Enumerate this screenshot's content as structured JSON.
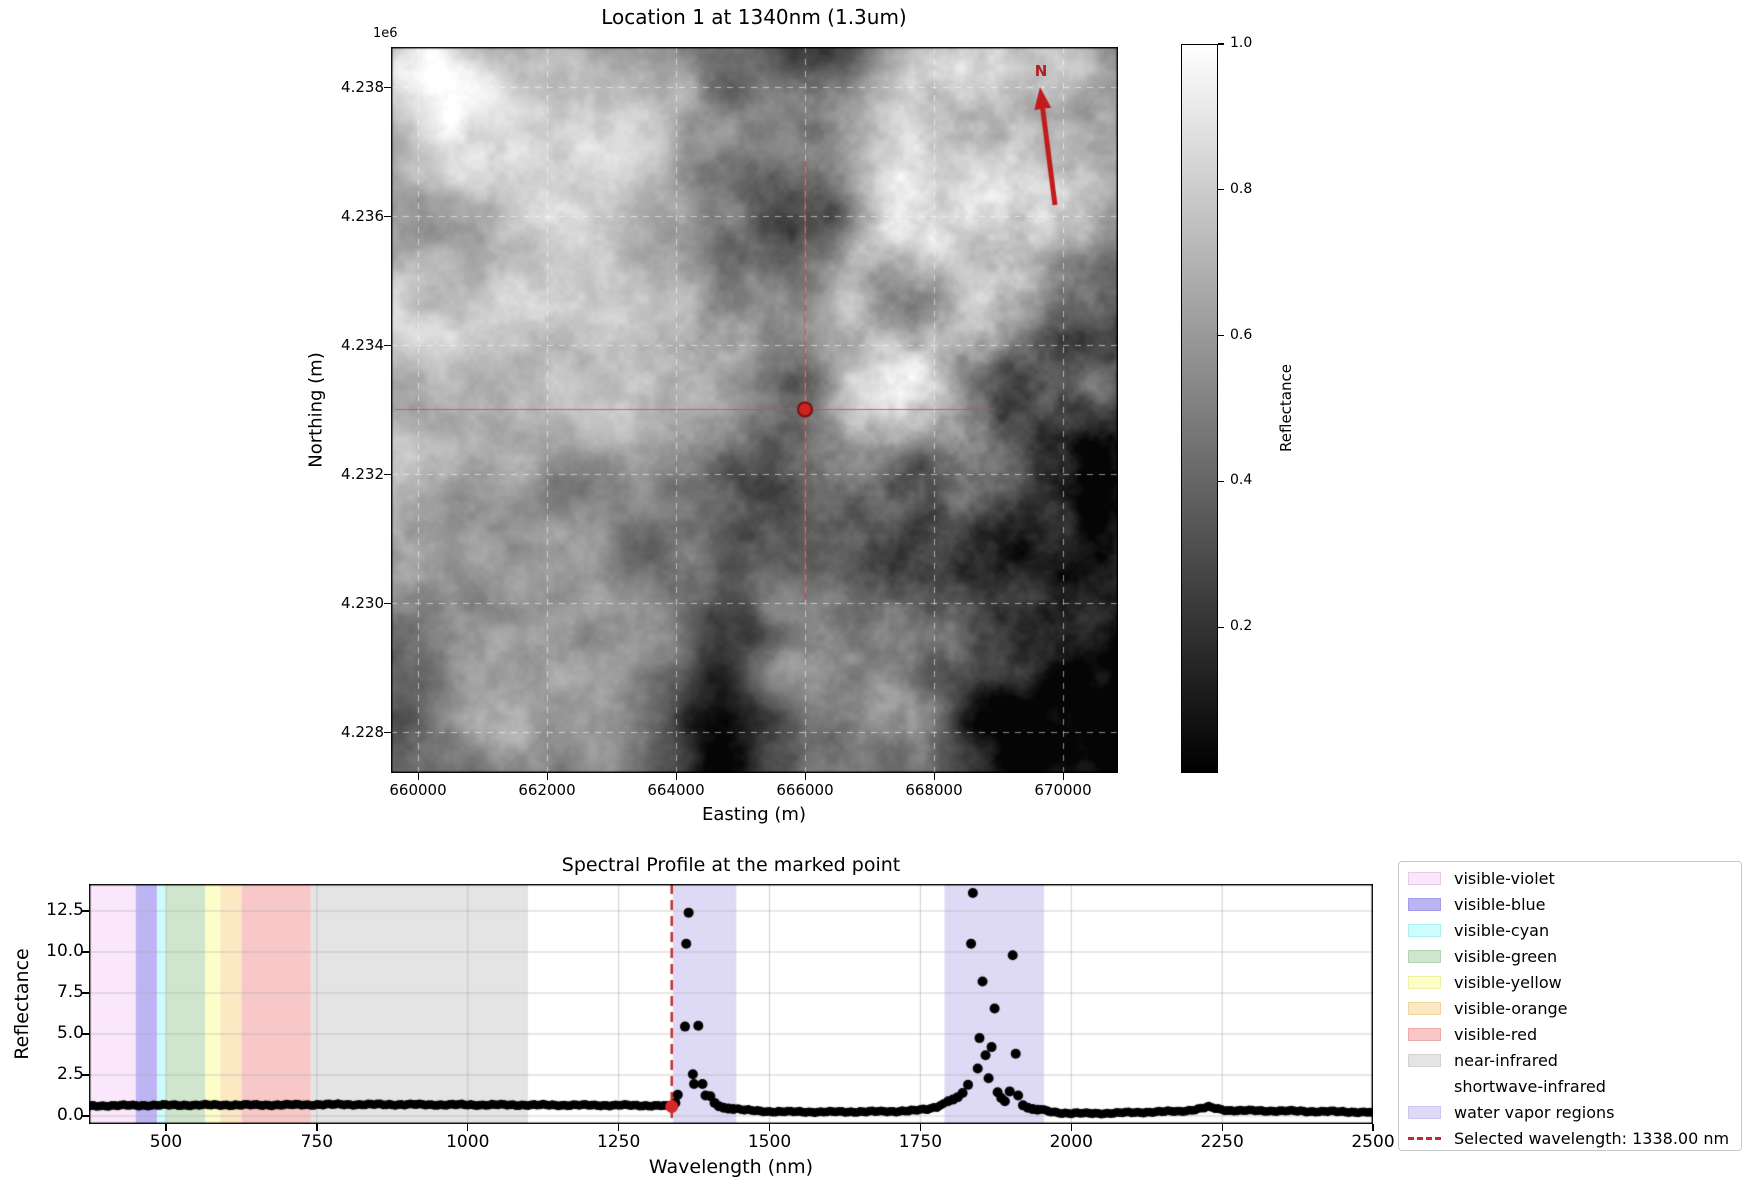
{
  "map": {
    "title": "Location 1 at 1340nm (1.3um)",
    "axis_offset_label": "1e6",
    "xlabel": "Easting (m)",
    "ylabel": "Northing (m)",
    "x_tick_labels": [
      "660000",
      "662000",
      "664000",
      "666000",
      "668000",
      "670000"
    ],
    "y_tick_labels": [
      "4.238",
      "4.236",
      "4.234",
      "4.232",
      "4.230",
      "4.228"
    ],
    "north_arrow_label": "N",
    "marked_point": {
      "easting_m": 666000,
      "northing_m": 4233000
    },
    "colors": {
      "marker_fill": "#cf2222",
      "marker_edge": "#7a0e0e",
      "crosshair": "#c85050",
      "north_arrow": "#c11c1c",
      "grid": "rgba(255,255,255,0.55)"
    }
  },
  "colorbar": {
    "label": "Reflectance",
    "tick_labels": [
      "1.0",
      "0.8",
      "0.6",
      "0.4",
      "0.2"
    ],
    "tick_values": [
      1.0,
      0.8,
      0.6,
      0.4,
      0.2
    ],
    "range": [
      0.0,
      1.0
    ],
    "colormap": "gray"
  },
  "spectral": {
    "title": "Spectral Profile at the marked point",
    "xlabel": "Wavelength (nm)",
    "ylabel": "Reflectance",
    "x_tick_labels": [
      "500",
      "750",
      "1000",
      "1250",
      "1500",
      "1750",
      "2000",
      "2250",
      "2500"
    ],
    "x_tick_values": [
      500,
      750,
      1000,
      1250,
      1500,
      1750,
      2000,
      2250,
      2500
    ],
    "y_tick_labels": [
      "0.0",
      "2.5",
      "5.0",
      "7.5",
      "10.0",
      "12.5"
    ],
    "y_tick_values": [
      0.0,
      2.5,
      5.0,
      7.5,
      10.0,
      12.5
    ],
    "legend": [
      {
        "label": "visible-violet",
        "swatch": "patch",
        "color": "#fbe7fb",
        "edge": "#ecc9ec"
      },
      {
        "label": "visible-blue",
        "swatch": "patch",
        "color": "#bdb5f3",
        "edge": "#a79bee"
      },
      {
        "label": "visible-cyan",
        "swatch": "patch",
        "color": "#cdfcfc",
        "edge": "#aef0f0"
      },
      {
        "label": "visible-green",
        "swatch": "patch",
        "color": "#cfe5cd",
        "edge": "#b4d3b1"
      },
      {
        "label": "visible-yellow",
        "swatch": "patch",
        "color": "#fdfdca",
        "edge": "#efefa6"
      },
      {
        "label": "visible-orange",
        "swatch": "patch",
        "color": "#fde8c4",
        "edge": "#f4d49e"
      },
      {
        "label": "visible-red",
        "swatch": "patch",
        "color": "#f8c8c8",
        "edge": "#efa9a9"
      },
      {
        "label": "near-infrared",
        "swatch": "patch",
        "color": "#e4e4e4",
        "edge": "#d2d2d2"
      },
      {
        "label": "shortwave-infrared",
        "swatch": "patch",
        "color": "#ffffff",
        "edge": "#ffffff"
      },
      {
        "label": "water vapor regions",
        "swatch": "patch",
        "color": "#dedaf6",
        "edge": "#cbc5f0"
      },
      {
        "label": "Selected wavelength: 1338.00 nm",
        "swatch": "dashed-line",
        "color": "#bf2b2b"
      }
    ]
  },
  "chart_data": [
    {
      "type": "heatmap",
      "title": "Location 1 at 1340nm (1.3um)",
      "xlabel": "Easting (m)",
      "ylabel": "Northing (m)",
      "x_ticks": [
        660000,
        662000,
        664000,
        666000,
        668000,
        670000
      ],
      "y_ticks_times_1e6": [
        4.238,
        4.236,
        4.234,
        4.232,
        4.23,
        4.228
      ],
      "extent": {
        "easting": [
          659580,
          670850
        ],
        "northing": [
          4227360,
          4238620
        ]
      },
      "colormap": "gray",
      "colorbar_label": "Reflectance",
      "colorbar_range": [
        0.0,
        1.0
      ],
      "colorbar_ticks": [
        1.0,
        0.8,
        0.6,
        0.4,
        0.2
      ],
      "marked_point": {
        "easting": 666000,
        "northing": 4233000
      },
      "grid": "white dashed at ticks",
      "north_arrow": true
    },
    {
      "type": "scatter",
      "title": "Spectral Profile at the marked point",
      "xlabel": "Wavelength (nm)",
      "ylabel": "Reflectance",
      "xlim": [
        372,
        2500
      ],
      "ylim": [
        -0.5,
        14.15
      ],
      "x_ticks": [
        500,
        750,
        1000,
        1250,
        1500,
        1750,
        2000,
        2250,
        2500
      ],
      "y_ticks": [
        0.0,
        2.5,
        5.0,
        7.5,
        10.0,
        12.5
      ],
      "grid": true,
      "legend_position": "outside-right",
      "marker": {
        "color": "#000000",
        "radius_px": 4.4
      },
      "selected_wavelength_nm": 1338.0,
      "selected_point": {
        "x": 1338,
        "y": 0.58,
        "color": "#d62828"
      },
      "selected_line": {
        "x": 1338,
        "style": "dashed",
        "color": "#bf2b2b"
      },
      "bands": [
        {
          "name": "visible-violet",
          "from": 372,
          "to": 450,
          "color": "#fbe7fb"
        },
        {
          "name": "visible-blue",
          "from": 450,
          "to": 485,
          "color": "#bdb5f3"
        },
        {
          "name": "visible-cyan",
          "from": 485,
          "to": 500,
          "color": "#cdfcfc"
        },
        {
          "name": "visible-green",
          "from": 500,
          "to": 565,
          "color": "#cfe5cd"
        },
        {
          "name": "visible-yellow",
          "from": 565,
          "to": 590,
          "color": "#fdfdca"
        },
        {
          "name": "visible-orange",
          "from": 590,
          "to": 625,
          "color": "#fde8c4"
        },
        {
          "name": "visible-red",
          "from": 625,
          "to": 740,
          "color": "#f8c8c8"
        },
        {
          "name": "near-infrared",
          "from": 740,
          "to": 1100,
          "color": "#e4e4e4"
        },
        {
          "name": "shortwave-infrared",
          "from": 1100,
          "to": 2500,
          "color": "#ffffff"
        },
        {
          "name": "water-vapor-region-1",
          "from": 1340,
          "to": 1445,
          "color": "#dedaf6"
        },
        {
          "name": "water-vapor-region-2",
          "from": 1790,
          "to": 1955,
          "color": "#dedaf6"
        }
      ],
      "baseline_segments": [
        [
          [
            372,
            0.58
          ],
          [
            380,
            0.62
          ],
          [
            400,
            0.63
          ],
          [
            430,
            0.64
          ],
          [
            460,
            0.65
          ],
          [
            500,
            0.66
          ],
          [
            540,
            0.665
          ],
          [
            580,
            0.67
          ],
          [
            620,
            0.67
          ],
          [
            660,
            0.67
          ],
          [
            700,
            0.675
          ],
          [
            740,
            0.69
          ],
          [
            780,
            0.7
          ],
          [
            820,
            0.7
          ],
          [
            860,
            0.7
          ],
          [
            900,
            0.7
          ],
          [
            940,
            0.69
          ],
          [
            980,
            0.685
          ],
          [
            1020,
            0.68
          ],
          [
            1060,
            0.675
          ],
          [
            1100,
            0.67
          ],
          [
            1140,
            0.665
          ],
          [
            1180,
            0.66
          ],
          [
            1220,
            0.655
          ],
          [
            1260,
            0.65
          ],
          [
            1300,
            0.635
          ],
          [
            1320,
            0.625
          ],
          [
            1338,
            0.58
          ]
        ],
        [
          [
            1448,
            0.42
          ],
          [
            1460,
            0.36
          ],
          [
            1480,
            0.3
          ],
          [
            1500,
            0.28
          ],
          [
            1530,
            0.26
          ],
          [
            1560,
            0.25
          ],
          [
            1600,
            0.25
          ],
          [
            1640,
            0.26
          ],
          [
            1680,
            0.27
          ],
          [
            1710,
            0.29
          ],
          [
            1740,
            0.33
          ],
          [
            1762,
            0.42
          ],
          [
            1778,
            0.58
          ],
          [
            1788,
            0.75
          ]
        ],
        [
          [
            1950,
            0.4
          ],
          [
            1962,
            0.28
          ],
          [
            1975,
            0.22
          ],
          [
            1990,
            0.18
          ],
          [
            2010,
            0.16
          ],
          [
            2040,
            0.16
          ],
          [
            2070,
            0.18
          ],
          [
            2100,
            0.21
          ],
          [
            2140,
            0.25
          ],
          [
            2180,
            0.29
          ],
          [
            2210,
            0.42
          ],
          [
            2228,
            0.55
          ],
          [
            2244,
            0.42
          ],
          [
            2260,
            0.34
          ],
          [
            2280,
            0.33
          ],
          [
            2310,
            0.32
          ],
          [
            2340,
            0.31
          ],
          [
            2370,
            0.3
          ],
          [
            2400,
            0.28
          ],
          [
            2430,
            0.27
          ],
          [
            2460,
            0.25
          ],
          [
            2500,
            0.22
          ]
        ]
      ],
      "peak_points_water_vapor_1": [
        [
          1344,
          0.8
        ],
        [
          1348,
          1.3
        ],
        [
          1360,
          5.45
        ],
        [
          1362,
          10.5
        ],
        [
          1366,
          12.4
        ],
        [
          1373,
          2.55
        ],
        [
          1375,
          1.95
        ],
        [
          1382,
          5.5
        ],
        [
          1389,
          1.95
        ],
        [
          1394,
          1.25
        ],
        [
          1402,
          1.2
        ],
        [
          1409,
          0.8
        ],
        [
          1416,
          0.6
        ],
        [
          1424,
          0.5
        ],
        [
          1432,
          0.45
        ],
        [
          1440,
          0.42
        ]
      ],
      "peak_points_water_vapor_2": [
        [
          1796,
          0.9
        ],
        [
          1804,
          1.0
        ],
        [
          1812,
          1.15
        ],
        [
          1820,
          1.4
        ],
        [
          1829,
          1.9
        ],
        [
          1834,
          10.5
        ],
        [
          1837,
          13.6
        ],
        [
          1845,
          2.9
        ],
        [
          1848,
          4.75
        ],
        [
          1853,
          8.2
        ],
        [
          1858,
          3.7
        ],
        [
          1863,
          2.3
        ],
        [
          1868,
          4.2
        ],
        [
          1873,
          6.55
        ],
        [
          1878,
          1.45
        ],
        [
          1884,
          1.1
        ],
        [
          1890,
          0.9
        ],
        [
          1898,
          1.5
        ],
        [
          1903,
          9.8
        ],
        [
          1908,
          3.8
        ],
        [
          1912,
          1.25
        ],
        [
          1920,
          0.65
        ],
        [
          1928,
          0.5
        ],
        [
          1936,
          0.42
        ],
        [
          1944,
          0.38
        ]
      ],
      "densify_step_nm": 5,
      "jitter_amplitude_units": 0.03
    }
  ]
}
